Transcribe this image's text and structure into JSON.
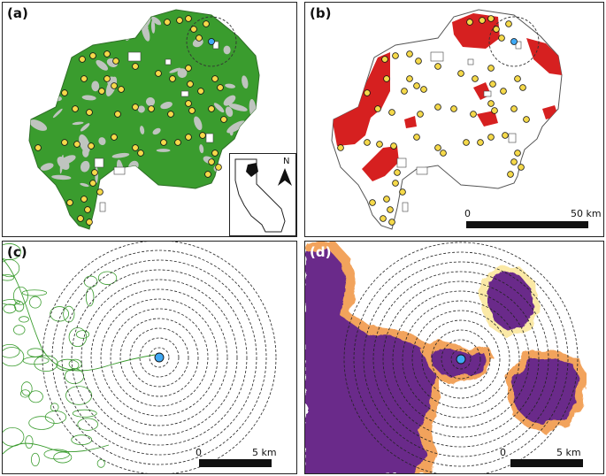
{
  "panels": [
    {
      "label": "(a)"
    },
    {
      "label": "(b)"
    },
    {
      "label": "(c)"
    },
    {
      "label": "(d)"
    }
  ],
  "scalebar_b": {
    "zero": "0",
    "end": "50 km"
  },
  "scalebar_c": {
    "zero": "0",
    "end": "5 km"
  },
  "scalebar_d": {
    "zero": "0",
    "end": "5 km"
  },
  "north_label": "N",
  "colors": {
    "forest_green": "#3a9c2e",
    "grey_gap": "#bfc4bf",
    "fire_red": "#d62020",
    "site_yellow": "#f5d94a",
    "focal_blue": "#3fa9f5",
    "severity_purple": "#6b2a8a",
    "severity_orange": "#f2a35c",
    "severity_cream": "#fbe9a6"
  }
}
